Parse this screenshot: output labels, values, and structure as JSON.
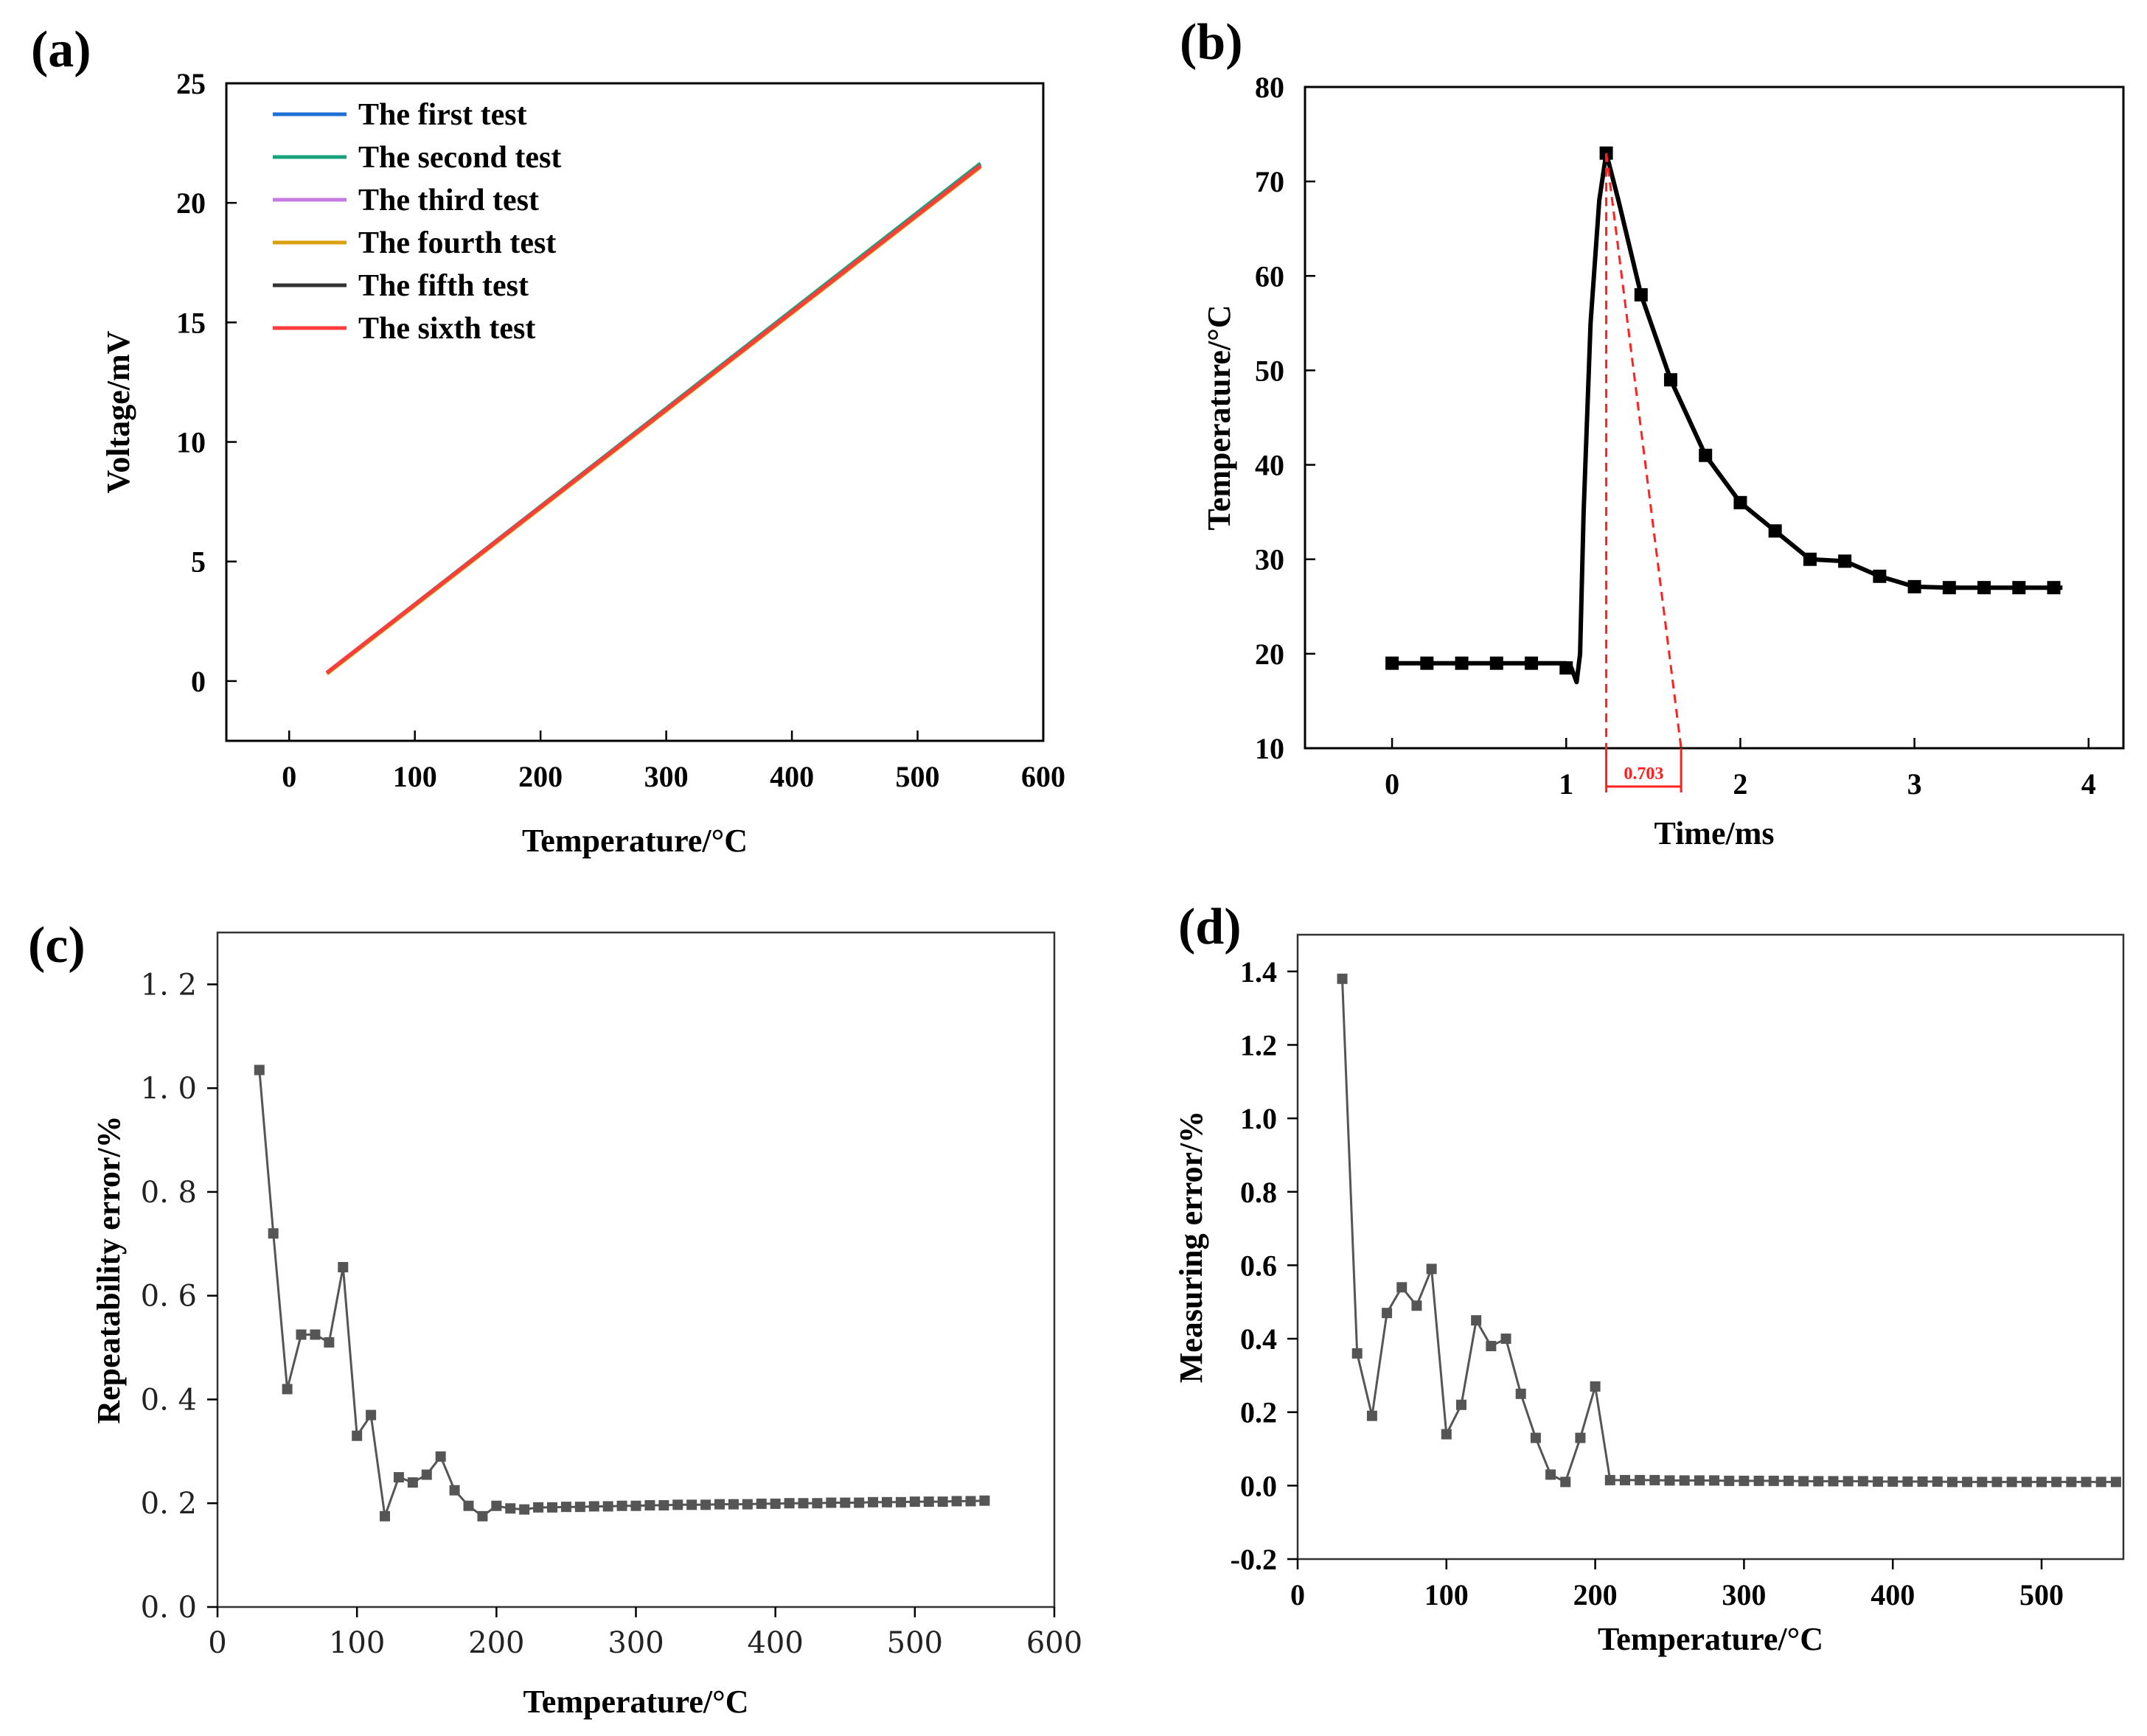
{
  "chart_data": [
    {
      "panel": "(a)",
      "type": "line",
      "xlabel": "Temperature/°C",
      "ylabel": "Voltage/mV",
      "xlim": [
        -50,
        600
      ],
      "ylim": [
        -2.5,
        25
      ],
      "xticks": [
        "0",
        "100",
        "200",
        "300",
        "400",
        "500",
        "600"
      ],
      "yticks": [
        "0",
        "5",
        "10",
        "15",
        "20",
        "25"
      ],
      "legend_placement": "top-left",
      "series": [
        {
          "name": "The first test",
          "color": "#1f6fd6",
          "x": [
            30,
            550
          ],
          "y": [
            0.35,
            21.6
          ]
        },
        {
          "name": "The second test",
          "color": "#1aa37a",
          "x": [
            30,
            550
          ],
          "y": [
            0.35,
            21.65
          ]
        },
        {
          "name": "The third test",
          "color": "#c57be0",
          "x": [
            30,
            550
          ],
          "y": [
            0.35,
            21.55
          ]
        },
        {
          "name": "The fourth test",
          "color": "#d9a012",
          "x": [
            30,
            550
          ],
          "y": [
            0.3,
            21.5
          ]
        },
        {
          "name": "The fifth test",
          "color": "#333333",
          "x": [
            30,
            550
          ],
          "y": [
            0.35,
            21.55
          ]
        },
        {
          "name": "The sixth test",
          "color": "#ff3c3c",
          "x": [
            30,
            550
          ],
          "y": [
            0.35,
            21.55
          ]
        }
      ]
    },
    {
      "panel": "(b)",
      "type": "line",
      "xlabel": "Time/ms",
      "ylabel": "Temperature/°C",
      "xlim": [
        -0.5,
        4.2
      ],
      "ylim": [
        10,
        80
      ],
      "xticks": [
        "0",
        "1",
        "2",
        "3",
        "4"
      ],
      "yticks": [
        "10",
        "20",
        "30",
        "40",
        "50",
        "60",
        "70",
        "80"
      ],
      "curve": {
        "x": [
          0,
          0.2,
          0.4,
          0.6,
          0.8,
          1.0,
          1.03,
          1.06,
          1.08,
          1.1,
          1.14,
          1.19,
          1.23,
          1.3,
          1.43,
          1.6,
          1.8,
          2.0,
          2.2,
          2.4,
          2.6,
          2.8,
          3.0,
          3.2,
          3.4,
          3.6,
          3.8,
          3.85
        ],
        "y": [
          19,
          19,
          19,
          19,
          19,
          19,
          18.5,
          17,
          20,
          35,
          55,
          68,
          73,
          68,
          58,
          49,
          41,
          36,
          33,
          30,
          29.8,
          28.2,
          27.1,
          27,
          27,
          27,
          27,
          27
        ]
      },
      "markers": {
        "x": [
          0,
          0.2,
          0.4,
          0.6,
          0.8,
          1.0,
          1.23,
          1.43,
          1.6,
          1.8,
          2.0,
          2.2,
          2.4,
          2.6,
          2.8,
          3.0,
          3.2,
          3.4,
          3.6,
          3.8
        ],
        "y": [
          19,
          19,
          19,
          19,
          19,
          18.5,
          73,
          58,
          49,
          41,
          36,
          33,
          30,
          29.8,
          28.2,
          27.1,
          27,
          27,
          27,
          27
        ]
      },
      "annotation": {
        "label": "0.703",
        "x_start": 1.23,
        "x_end": 1.66,
        "peak_y": 73,
        "color": "#ff2020"
      }
    },
    {
      "panel": "(c)",
      "type": "line",
      "xlabel": "Temperature/°C",
      "ylabel": "Repeatability error/%",
      "xlim": [
        0,
        600
      ],
      "ylim": [
        0,
        1.3
      ],
      "xticks": [
        "0",
        "100",
        "200",
        "300",
        "400",
        "500",
        "600"
      ],
      "yticks": [
        "0. 0",
        "0. 2",
        "0. 4",
        "0. 6",
        "0. 8",
        "1. 0",
        "1. 2"
      ],
      "x": [
        30,
        40,
        50,
        60,
        70,
        80,
        90,
        100,
        110,
        120,
        130,
        140,
        150,
        160,
        170,
        180,
        190,
        200,
        210,
        220,
        230,
        240,
        250,
        260,
        270,
        280,
        290,
        300,
        310,
        320,
        330,
        340,
        350,
        360,
        370,
        380,
        390,
        400,
        410,
        420,
        430,
        440,
        450,
        460,
        470,
        480,
        490,
        500,
        510,
        520,
        530,
        540,
        550
      ],
      "y": [
        1.035,
        0.72,
        0.42,
        0.525,
        0.525,
        0.51,
        0.655,
        0.33,
        0.37,
        0.175,
        0.25,
        0.24,
        0.255,
        0.29,
        0.225,
        0.195,
        0.175,
        0.195,
        0.19,
        0.188,
        0.192,
        0.192,
        0.193,
        0.193,
        0.194,
        0.194,
        0.195,
        0.195,
        0.196,
        0.196,
        0.197,
        0.197,
        0.197,
        0.198,
        0.198,
        0.198,
        0.199,
        0.199,
        0.2,
        0.2,
        0.2,
        0.201,
        0.201,
        0.201,
        0.202,
        0.202,
        0.202,
        0.203,
        0.203,
        0.203,
        0.204,
        0.204,
        0.205
      ]
    },
    {
      "panel": "(d)",
      "type": "line",
      "xlabel": "Temperature/°C",
      "ylabel": "Measuring error/%",
      "xlim": [
        0,
        555
      ],
      "ylim": [
        -0.2,
        1.5
      ],
      "xticks": [
        "0",
        "100",
        "200",
        "300",
        "400",
        "500"
      ],
      "yticks": [
        "-0.2",
        "0.0",
        "0.2",
        "0.4",
        "0.6",
        "0.8",
        "1.0",
        "1.2",
        "1.4"
      ],
      "x": [
        30,
        40,
        50,
        60,
        70,
        80,
        90,
        100,
        110,
        120,
        130,
        140,
        150,
        160,
        170,
        180,
        190,
        200,
        210,
        220,
        230,
        240,
        250,
        260,
        270,
        280,
        290,
        300,
        310,
        320,
        330,
        340,
        350,
        360,
        370,
        380,
        390,
        400,
        410,
        420,
        430,
        440,
        450,
        460,
        470,
        480,
        490,
        500,
        510,
        520,
        530,
        540,
        550
      ],
      "y": [
        1.38,
        0.36,
        0.19,
        0.47,
        0.54,
        0.49,
        0.59,
        0.14,
        0.22,
        0.45,
        0.38,
        0.4,
        0.25,
        0.13,
        0.03,
        0.01,
        0.13,
        0.27,
        0.015,
        0.015,
        0.015,
        0.015,
        0.014,
        0.014,
        0.014,
        0.014,
        0.013,
        0.013,
        0.013,
        0.013,
        0.013,
        0.012,
        0.012,
        0.012,
        0.012,
        0.012,
        0.011,
        0.011,
        0.011,
        0.011,
        0.011,
        0.01,
        0.01,
        0.01,
        0.01,
        0.01,
        0.01,
        0.01,
        0.01,
        0.01,
        0.01,
        0.01,
        0.01
      ]
    }
  ]
}
